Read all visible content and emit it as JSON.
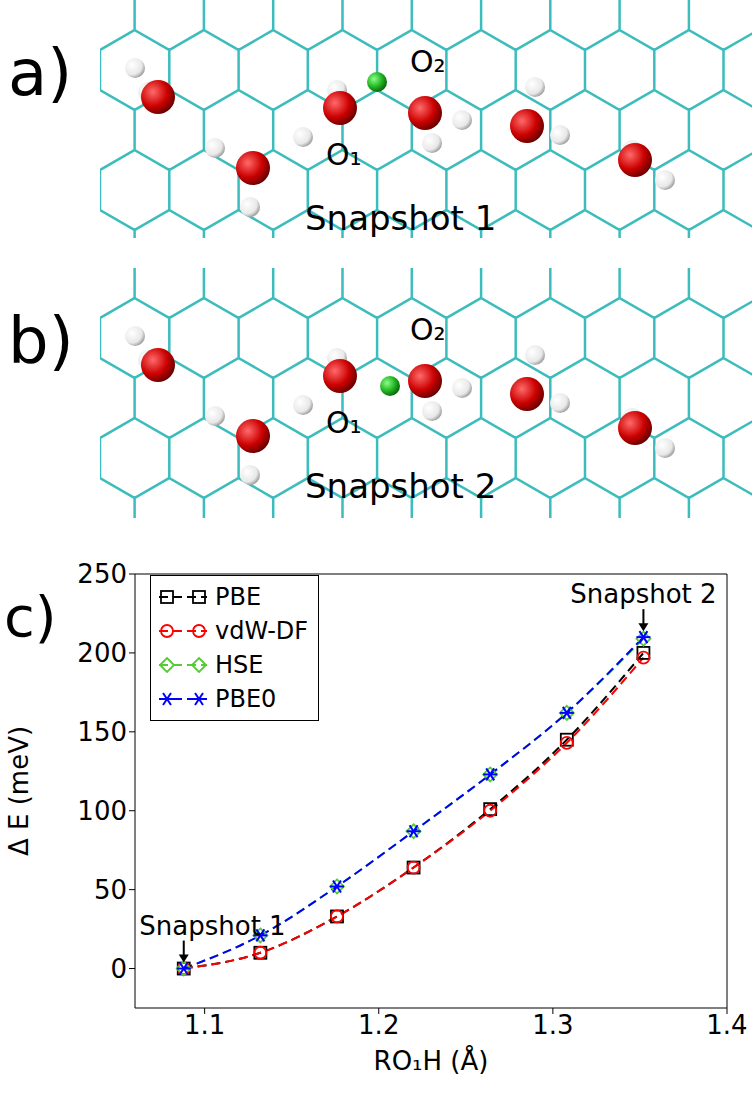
{
  "panels": [
    {
      "letter": "a)",
      "title": "Snapshot 1",
      "atom_labels": [
        "O₁",
        "O₂"
      ]
    },
    {
      "letter": "b)",
      "title": "Snapshot 2",
      "atom_labels": [
        "O₁",
        "O₂"
      ]
    }
  ],
  "chart_data": {
    "type": "line",
    "panel_letter": "c)",
    "x_label": "RO₁H (Å)",
    "y_label": "Δ E (meV)",
    "x": [
      1.088,
      1.132,
      1.176,
      1.22,
      1.264,
      1.308,
      1.352
    ],
    "xlim": [
      1.06,
      1.4
    ],
    "xticks": [
      1.1,
      1.2,
      1.3,
      1.4
    ],
    "ylim": [
      -25,
      250
    ],
    "yticks": [
      0,
      50,
      100,
      150,
      200,
      250
    ],
    "grid": false,
    "legend": "upper left",
    "series": [
      {
        "name": "PBE",
        "color": "#000000",
        "marker": "square",
        "line_style": "dashed",
        "values": [
          0,
          10,
          33,
          64,
          101,
          145,
          200
        ]
      },
      {
        "name": "vdW-DF",
        "color": "#ff0000",
        "marker": "circle",
        "line_style": "dashed",
        "values": [
          0,
          10,
          33,
          64,
          100,
          143,
          197
        ]
      },
      {
        "name": "HSE",
        "color": "#55cc33",
        "marker": "diamond",
        "line_style": "dashed",
        "values": [
          0,
          21,
          52,
          87,
          123,
          162,
          209
        ]
      },
      {
        "name": "PBE0",
        "color": "#0000ff",
        "marker": "star",
        "line_style": "dashed",
        "values": [
          0,
          21,
          52,
          87,
          123,
          162,
          210
        ]
      }
    ],
    "annotations": [
      {
        "text": "Snapshot 1",
        "x": 1.088,
        "y": 0
      },
      {
        "text": "Snapshot 2",
        "x": 1.352,
        "y": 210
      }
    ]
  }
}
